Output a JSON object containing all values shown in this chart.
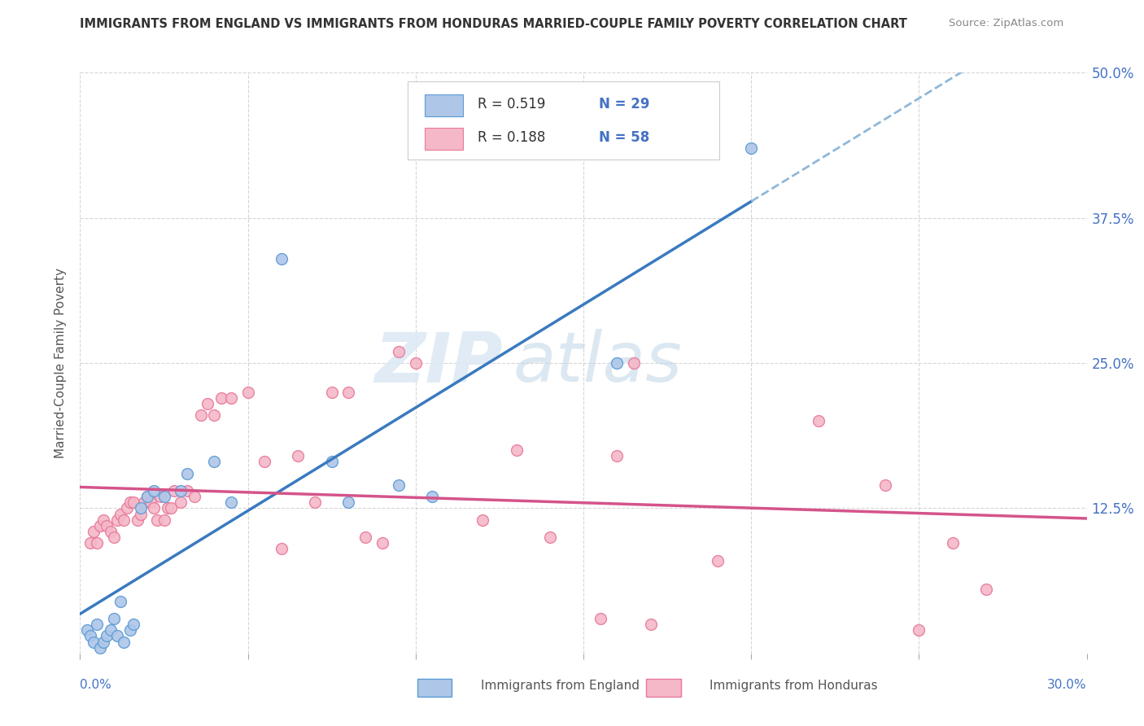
{
  "title": "IMMIGRANTS FROM ENGLAND VS IMMIGRANTS FROM HONDURAS MARRIED-COUPLE FAMILY POVERTY CORRELATION CHART",
  "source": "Source: ZipAtlas.com",
  "ylabel": "Married-Couple Family Poverty",
  "x_min": 0.0,
  "x_max": 0.3,
  "y_min": 0.0,
  "y_max": 0.5,
  "y_ticks": [
    0.0,
    0.125,
    0.25,
    0.375,
    0.5
  ],
  "y_tick_labels": [
    "",
    "12.5%",
    "25.0%",
    "37.5%",
    "50.0%"
  ],
  "england_color": "#aec6e8",
  "england_edge_color": "#5b9bd5",
  "honduras_color": "#f4b8c8",
  "honduras_edge_color": "#e8799a",
  "england_line_color": "#3a7abf",
  "england_dash_color": "#90b8d8",
  "honduras_line_color": "#d4548a",
  "watermark_zip": "ZIP",
  "watermark_atlas": "atlas",
  "england_R": 0.519,
  "england_N": 29,
  "honduras_R": 0.188,
  "honduras_N": 58,
  "england_scatter_x": [
    0.002,
    0.003,
    0.004,
    0.005,
    0.006,
    0.007,
    0.008,
    0.009,
    0.01,
    0.011,
    0.012,
    0.013,
    0.015,
    0.016,
    0.018,
    0.02,
    0.022,
    0.025,
    0.03,
    0.032,
    0.04,
    0.045,
    0.06,
    0.075,
    0.08,
    0.095,
    0.105,
    0.16,
    0.2
  ],
  "england_scatter_y": [
    0.02,
    0.015,
    0.01,
    0.025,
    0.005,
    0.01,
    0.015,
    0.02,
    0.03,
    0.015,
    0.045,
    0.01,
    0.02,
    0.025,
    0.125,
    0.135,
    0.14,
    0.135,
    0.14,
    0.155,
    0.165,
    0.13,
    0.34,
    0.165,
    0.13,
    0.145,
    0.135,
    0.25,
    0.435
  ],
  "honduras_scatter_x": [
    0.003,
    0.004,
    0.005,
    0.006,
    0.007,
    0.008,
    0.009,
    0.01,
    0.011,
    0.012,
    0.013,
    0.014,
    0.015,
    0.016,
    0.017,
    0.018,
    0.019,
    0.02,
    0.021,
    0.022,
    0.023,
    0.024,
    0.025,
    0.026,
    0.027,
    0.028,
    0.03,
    0.032,
    0.034,
    0.036,
    0.038,
    0.04,
    0.042,
    0.045,
    0.05,
    0.055,
    0.06,
    0.065,
    0.07,
    0.075,
    0.08,
    0.085,
    0.09,
    0.095,
    0.1,
    0.12,
    0.13,
    0.14,
    0.155,
    0.16,
    0.165,
    0.17,
    0.19,
    0.22,
    0.24,
    0.25,
    0.26,
    0.27
  ],
  "honduras_scatter_y": [
    0.095,
    0.105,
    0.095,
    0.11,
    0.115,
    0.11,
    0.105,
    0.1,
    0.115,
    0.12,
    0.115,
    0.125,
    0.13,
    0.13,
    0.115,
    0.12,
    0.13,
    0.135,
    0.13,
    0.125,
    0.115,
    0.135,
    0.115,
    0.125,
    0.125,
    0.14,
    0.13,
    0.14,
    0.135,
    0.205,
    0.215,
    0.205,
    0.22,
    0.22,
    0.225,
    0.165,
    0.09,
    0.17,
    0.13,
    0.225,
    0.225,
    0.1,
    0.095,
    0.26,
    0.25,
    0.115,
    0.175,
    0.1,
    0.03,
    0.17,
    0.25,
    0.025,
    0.08,
    0.2,
    0.145,
    0.02,
    0.095,
    0.055
  ]
}
